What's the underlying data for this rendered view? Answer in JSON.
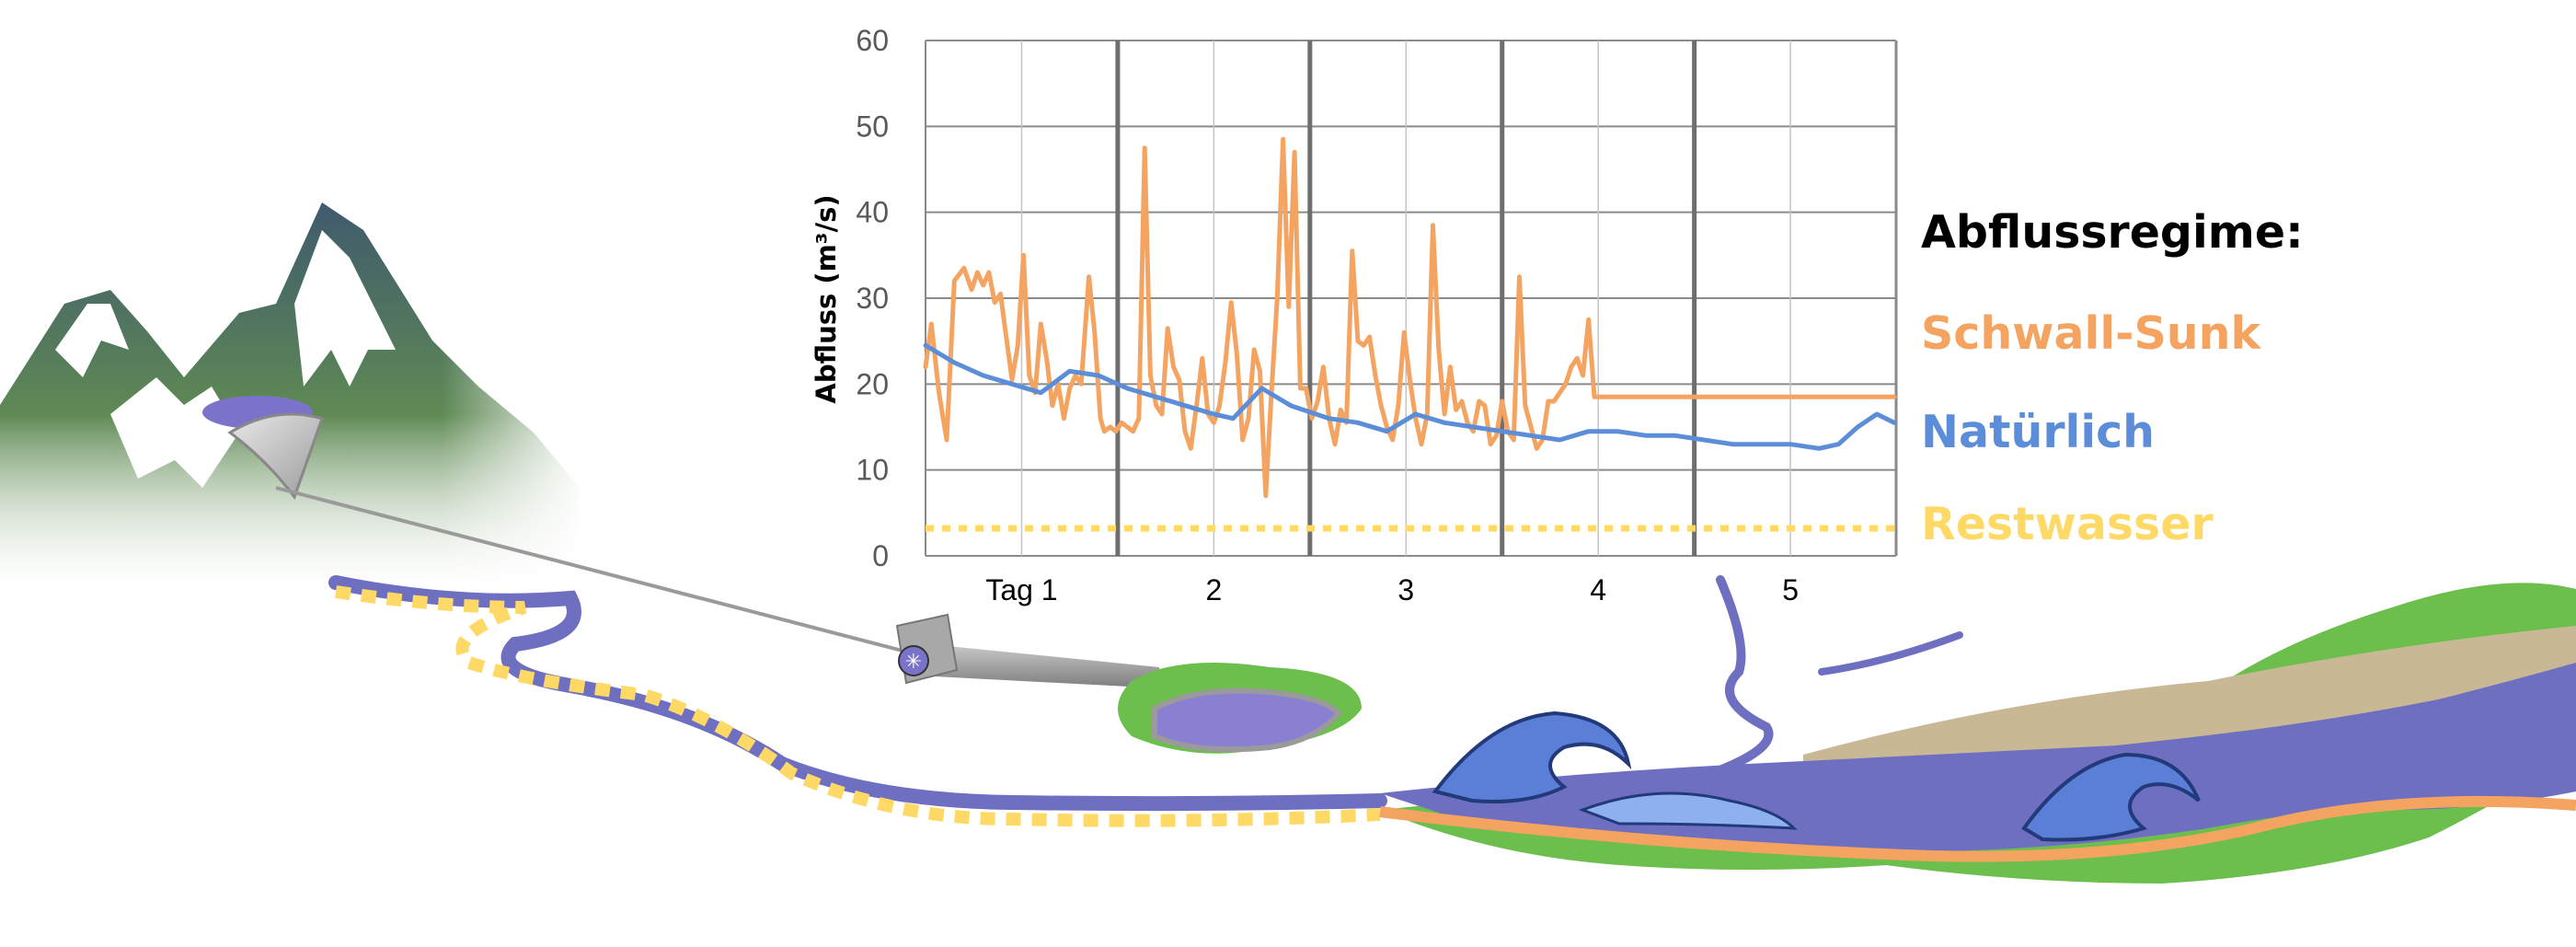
{
  "chart_data": {
    "type": "line",
    "ylabel": "Abfluss (m³/s)",
    "ylim": [
      0,
      60
    ],
    "yticks": [
      0,
      10,
      20,
      30,
      40,
      50,
      60
    ],
    "xlim": [
      0,
      5.05
    ],
    "day_labels": [
      {
        "x": 0.5,
        "label": "Tag 1"
      },
      {
        "x": 1.5,
        "label": "2"
      },
      {
        "x": 2.5,
        "label": "3"
      },
      {
        "x": 3.5,
        "label": "4"
      },
      {
        "x": 4.5,
        "label": "5"
      }
    ],
    "day_dividers": [
      1,
      2,
      3,
      4
    ],
    "grid": true,
    "legend_title": "Abflussregime:",
    "legend_placement": "right",
    "series": [
      {
        "name": "Schwall-Sunk",
        "color": "#F4A460",
        "style": "solid",
        "x": [
          0,
          0.03,
          0.07,
          0.11,
          0.15,
          0.2,
          0.24,
          0.27,
          0.3,
          0.33,
          0.36,
          0.39,
          0.42,
          0.45,
          0.48,
          0.51,
          0.54,
          0.57,
          0.6,
          0.63,
          0.66,
          0.69,
          0.72,
          0.75,
          0.78,
          0.81,
          0.85,
          0.88,
          0.91,
          0.93,
          0.96,
          0.99,
          1.02,
          1.05,
          1.08,
          1.11,
          1.14,
          1.17,
          1.2,
          1.23,
          1.26,
          1.29,
          1.32,
          1.35,
          1.38,
          1.41,
          1.44,
          1.47,
          1.5,
          1.53,
          1.56,
          1.59,
          1.62,
          1.65,
          1.68,
          1.71,
          1.74,
          1.77,
          1.8,
          1.83,
          1.86,
          1.89,
          1.92,
          1.95,
          1.98,
          2.01,
          2.04,
          2.07,
          2.1,
          2.13,
          2.16,
          2.19,
          2.22,
          2.25,
          2.28,
          2.31,
          2.34,
          2.37,
          2.4,
          2.43,
          2.46,
          2.49,
          2.52,
          2.55,
          2.58,
          2.61,
          2.64,
          2.67,
          2.7,
          2.73,
          2.76,
          2.79,
          2.82,
          2.85,
          2.88,
          2.91,
          2.94,
          2.97,
          3.0,
          3.03,
          3.06,
          3.09,
          3.12,
          3.15,
          3.18,
          3.21,
          3.24,
          3.27,
          3.3,
          3.33,
          3.36,
          3.39,
          3.42,
          3.45,
          3.48,
          3.51,
          3.54,
          3.57,
          3.6,
          3.63,
          3.66,
          3.69,
          3.72,
          3.75,
          3.78,
          3.81,
          3.84,
          3.87,
          3.9,
          3.93,
          3.96,
          3.99,
          4.02,
          4.05,
          4.08,
          4.11,
          4.14,
          4.17,
          4.2,
          4.23,
          4.26,
          4.29,
          4.32,
          4.35,
          4.38,
          4.41,
          4.44,
          4.47,
          4.5,
          4.53,
          4.56,
          4.59,
          4.62,
          4.65,
          4.68,
          4.71,
          4.74,
          4.77,
          4.8,
          4.83,
          4.86,
          4.89,
          4.92,
          4.95,
          4.98,
          5.01,
          5.04
        ],
        "y": [
          22,
          27,
          19,
          13.5,
          32,
          33.5,
          31,
          33,
          31.5,
          33,
          29.5,
          30.5,
          25.5,
          20.5,
          24.5,
          35,
          21,
          19,
          27,
          23,
          17.5,
          20,
          16,
          19.5,
          21,
          20,
          32.5,
          26,
          16,
          14.5,
          15,
          14.5,
          15.5,
          15,
          14.5,
          16,
          47.5,
          21,
          17.5,
          16.5,
          26.5,
          22,
          20.5,
          14.5,
          12.5,
          17.5,
          23,
          16.5,
          15.5,
          17.5,
          22.5,
          29.5,
          23.5,
          13.5,
          16,
          24,
          21.5,
          7,
          19,
          30,
          48.5,
          29,
          47,
          19.5,
          19.5,
          16,
          18,
          22,
          16,
          13,
          17,
          15.5,
          35.5,
          25,
          24.5,
          25.5,
          21,
          17.5,
          15,
          13.5,
          17.5,
          26,
          20.5,
          16,
          13,
          16.5,
          38.5,
          24,
          16.5,
          22,
          17,
          18,
          15.5,
          14.5,
          18,
          17.5,
          13,
          14,
          18,
          14.5,
          13.5,
          32.5,
          17.5,
          15,
          12.5,
          13.5,
          18,
          18,
          19,
          20,
          22,
          23,
          21,
          27.5,
          18.5,
          18.5,
          18.5,
          18.5,
          18.5,
          18.5,
          18.5,
          18.5,
          18.5,
          18.5,
          18.5,
          18.5,
          18.5,
          18.5,
          18.5,
          18.5,
          18.5,
          18.5,
          18.5,
          18.5,
          18.5,
          18.5,
          18.5,
          18.5,
          18.5,
          18.5,
          18.5,
          18.5,
          18.5,
          18.5,
          18.5,
          18.5,
          18.5,
          18.5,
          18.5,
          18.5,
          18.5,
          18.5,
          18.5,
          18.5,
          18.5,
          18.5,
          18.5,
          18.5,
          18.5,
          18.5,
          18.5,
          18.5,
          18.5,
          18.5,
          18.5,
          18.5,
          18.5
        ]
      },
      {
        "name": "Natürlich",
        "color": "#5B8DD9",
        "style": "solid",
        "x": [
          0,
          0.15,
          0.3,
          0.45,
          0.6,
          0.75,
          0.9,
          1.05,
          1.2,
          1.35,
          1.5,
          1.6,
          1.75,
          1.9,
          2.1,
          2.25,
          2.4,
          2.55,
          2.7,
          2.85,
          3.0,
          3.15,
          3.3,
          3.45,
          3.6,
          3.75,
          3.9,
          4.05,
          4.2,
          4.35,
          4.5,
          4.65,
          4.75,
          4.85,
          4.95,
          5.04
        ],
        "y": [
          24.5,
          22.5,
          21,
          20,
          19,
          21.5,
          21,
          19.5,
          18.5,
          17.5,
          16.5,
          16,
          19.5,
          17.5,
          16,
          15.5,
          14.5,
          16.5,
          15.5,
          15,
          14.5,
          14,
          13.5,
          14.5,
          14.5,
          14,
          14,
          13.5,
          13,
          13,
          13,
          12.5,
          13,
          15,
          16.5,
          15.5
        ]
      },
      {
        "name": "Restwasser",
        "color": "#FFD966",
        "style": "dotted",
        "x": [
          0,
          5.05
        ],
        "y": [
          3.2,
          3.2
        ]
      }
    ]
  }
}
